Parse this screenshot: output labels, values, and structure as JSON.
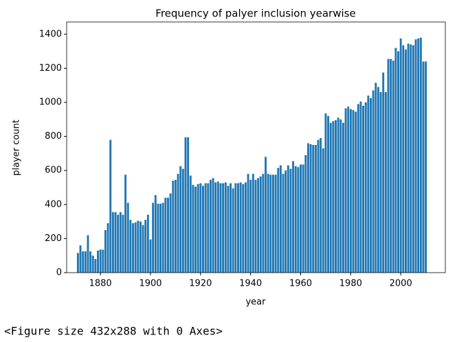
{
  "chart_data": {
    "type": "bar",
    "title": "Frequency of palyer inclusion yearwise",
    "xlabel": "year",
    "ylabel": "player count",
    "color": "#1f77b4",
    "x": [
      1871,
      1872,
      1873,
      1874,
      1875,
      1876,
      1877,
      1878,
      1879,
      1880,
      1881,
      1882,
      1883,
      1884,
      1885,
      1886,
      1887,
      1888,
      1889,
      1890,
      1891,
      1892,
      1893,
      1894,
      1895,
      1896,
      1897,
      1898,
      1899,
      1900,
      1901,
      1902,
      1903,
      1904,
      1905,
      1906,
      1907,
      1908,
      1909,
      1910,
      1911,
      1912,
      1913,
      1914,
      1915,
      1916,
      1917,
      1918,
      1919,
      1920,
      1921,
      1922,
      1923,
      1924,
      1925,
      1926,
      1927,
      1928,
      1929,
      1930,
      1931,
      1932,
      1933,
      1934,
      1935,
      1936,
      1937,
      1938,
      1939,
      1940,
      1941,
      1942,
      1943,
      1944,
      1945,
      1946,
      1947,
      1948,
      1949,
      1950,
      1951,
      1952,
      1953,
      1954,
      1955,
      1956,
      1957,
      1958,
      1959,
      1960,
      1961,
      1962,
      1963,
      1964,
      1965,
      1966,
      1967,
      1968,
      1969,
      1970,
      1971,
      1972,
      1973,
      1974,
      1975,
      1976,
      1977,
      1978,
      1979,
      1980,
      1981,
      1982,
      1983,
      1984,
      1985,
      1986,
      1987,
      1988,
      1989,
      1990,
      1991,
      1992,
      1993,
      1994,
      1995,
      1996,
      1997,
      1998,
      1999,
      2000,
      2001,
      2002,
      2003,
      2004,
      2005,
      2006,
      2007,
      2008,
      2009,
      2010
    ],
    "values": [
      115,
      160,
      125,
      125,
      220,
      125,
      100,
      80,
      130,
      135,
      135,
      250,
      290,
      780,
      355,
      355,
      340,
      355,
      340,
      575,
      410,
      310,
      290,
      295,
      305,
      300,
      280,
      310,
      340,
      195,
      410,
      455,
      405,
      405,
      410,
      440,
      440,
      465,
      540,
      545,
      580,
      625,
      610,
      795,
      795,
      570,
      515,
      505,
      520,
      525,
      510,
      525,
      525,
      545,
      555,
      530,
      535,
      525,
      525,
      530,
      510,
      525,
      495,
      525,
      525,
      530,
      520,
      530,
      580,
      545,
      580,
      545,
      555,
      565,
      580,
      680,
      580,
      575,
      575,
      575,
      615,
      630,
      580,
      600,
      630,
      610,
      655,
      625,
      620,
      635,
      635,
      690,
      760,
      755,
      750,
      750,
      780,
      790,
      730,
      935,
      920,
      880,
      890,
      895,
      910,
      900,
      880,
      965,
      975,
      960,
      955,
      945,
      990,
      1005,
      980,
      1000,
      1040,
      1025,
      1070,
      1115,
      1090,
      1060,
      1175,
      1060,
      1255,
      1255,
      1245,
      1320,
      1300,
      1375,
      1335,
      1310,
      1345,
      1340,
      1335,
      1370,
      1375,
      1380,
      1240,
      1240
    ],
    "xlim": [
      1866.5,
      2017.8
    ],
    "ylim": [
      0,
      1472
    ],
    "xticks": [
      1880,
      1900,
      1920,
      1940,
      1960,
      1980,
      2000
    ],
    "yticks": [
      0,
      200,
      400,
      600,
      800,
      1000,
      1200,
      1400
    ]
  },
  "output_text": "<Figure size 432x288 with 0 Axes>"
}
